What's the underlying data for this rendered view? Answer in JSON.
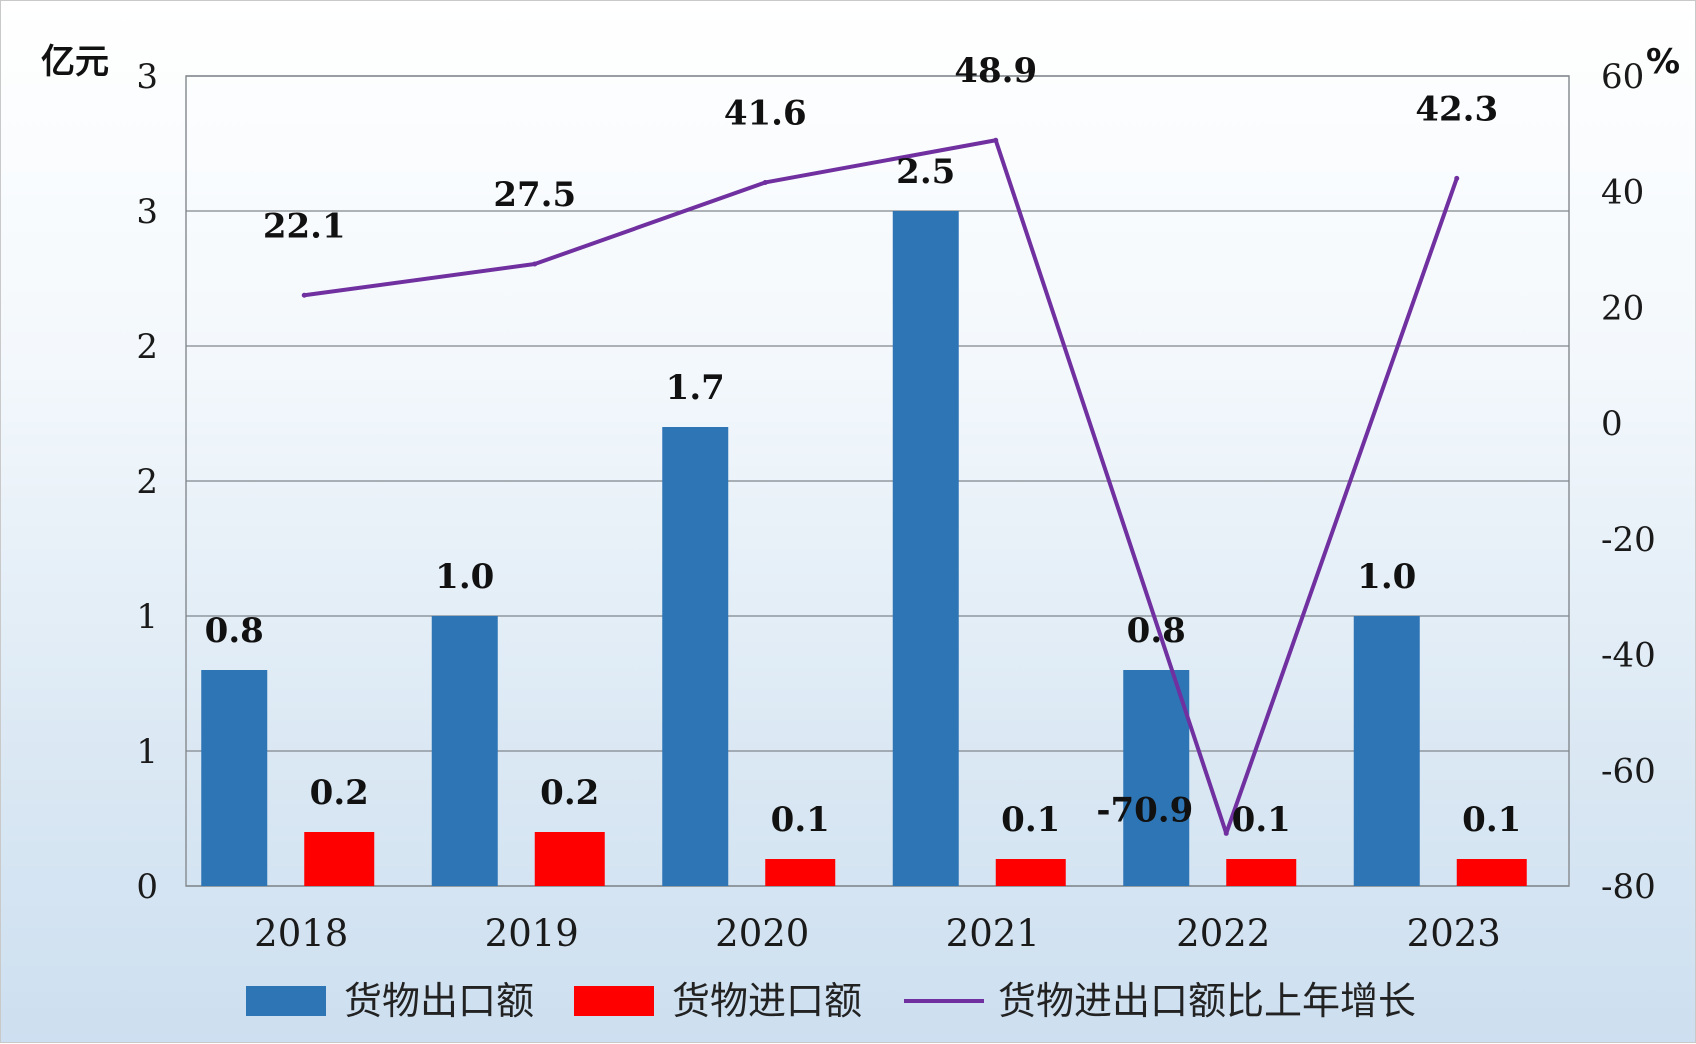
{
  "chart_data": {
    "type": "bar",
    "categories": [
      "2018",
      "2019",
      "2020",
      "2021",
      "2022",
      "2023"
    ],
    "left_axis": {
      "unit": "亿元",
      "ylim": [
        0,
        3
      ],
      "tick_labels": [
        "0",
        "1",
        "1",
        "2",
        "2",
        "3",
        "3"
      ]
    },
    "right_axis": {
      "unit": "%",
      "ylim": [
        -80,
        60
      ],
      "ticks": [
        "-80",
        "-60",
        "-40",
        "-20",
        "0",
        "20",
        "40",
        "60"
      ]
    },
    "series": [
      {
        "name": "货物出口额",
        "kind": "bar",
        "axis": "left",
        "color": "#2e75b6",
        "values": [
          0.8,
          1.0,
          1.7,
          2.5,
          0.8,
          1.0
        ]
      },
      {
        "name": "货物进口额",
        "kind": "bar",
        "axis": "left",
        "color": "#ff0000",
        "values": [
          0.2,
          0.2,
          0.1,
          0.1,
          0.1,
          0.1
        ]
      },
      {
        "name": "货物进出口额比上年增长",
        "kind": "line",
        "axis": "right",
        "color": "#7030a0",
        "values": [
          22.1,
          27.5,
          41.6,
          48.9,
          -70.9,
          42.3
        ]
      }
    ],
    "labels": {
      "export": [
        "0.8",
        "1.0",
        "1.7",
        "2.5",
        "0.8",
        "1.0"
      ],
      "import": [
        "0.2",
        "0.2",
        "0.1",
        "0.1",
        "0.1",
        "0.1"
      ],
      "growth": [
        "22.1",
        "27.5",
        "41.6",
        "48.9",
        "-70.9",
        "42.3"
      ]
    },
    "grid": true,
    "legend_position": "bottom"
  }
}
